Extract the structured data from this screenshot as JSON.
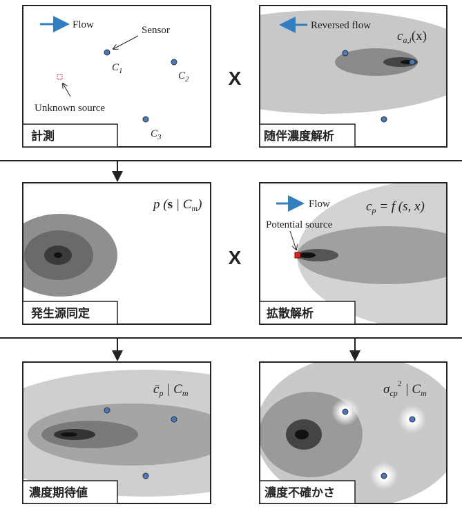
{
  "operators": [
    "X",
    "X"
  ],
  "panels": [
    {
      "label": "計測",
      "flow": "Flow",
      "sensor": "Sensor",
      "sensors": [
        [
          "C",
          "1"
        ],
        [
          "C",
          "2"
        ],
        [
          "C",
          "3"
        ]
      ],
      "unknown": "Unknown source"
    },
    {
      "label": "随伴濃度解析",
      "flow": "Reversed flow",
      "formula": [
        "c",
        "a,i",
        "(x)"
      ]
    },
    {
      "label": "発生源同定",
      "formula": [
        "p (",
        "s",
        " | C",
        "m",
        ")"
      ]
    },
    {
      "label": "拡散解析",
      "flow": "Flow",
      "source": "Potential source",
      "formula": [
        "c",
        "p",
        " = f (s, x)"
      ]
    },
    {
      "label": "濃度期待値",
      "formula": [
        "c̄",
        "p",
        " | C",
        "m"
      ]
    },
    {
      "label": "濃度不確かさ",
      "formula": [
        "σ",
        "cp",
        "2",
        " | C",
        "m"
      ]
    }
  ]
}
